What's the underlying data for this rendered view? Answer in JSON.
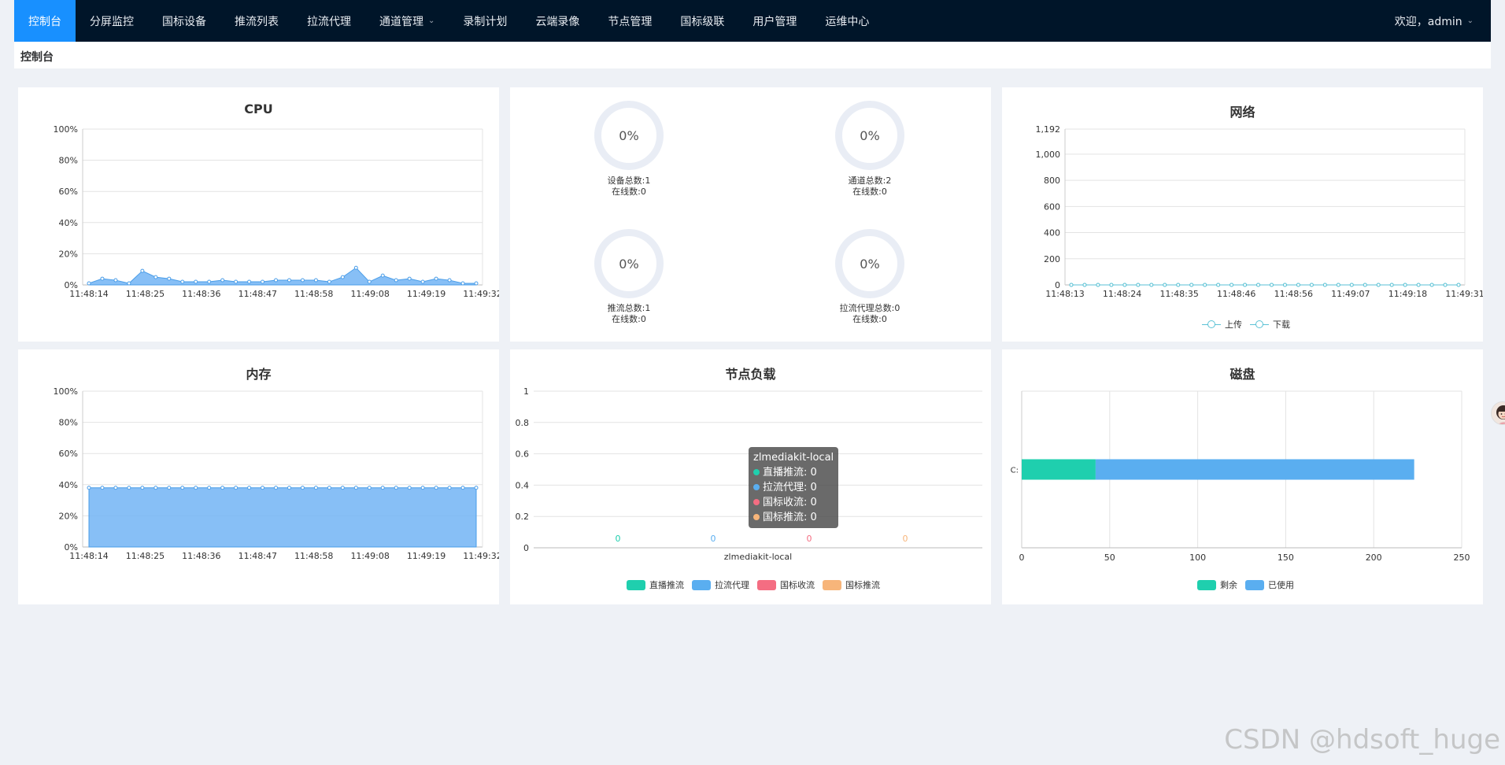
{
  "nav": {
    "items": [
      "控制台",
      "分屏监控",
      "国标设备",
      "推流列表",
      "拉流代理",
      "通道管理",
      "录制计划",
      "云端录像",
      "节点管理",
      "国标级联",
      "用户管理",
      "运维中心"
    ],
    "active_index": 0,
    "user": "欢迎，admin"
  },
  "breadcrumb": "控制台",
  "colors": {
    "nav_bg": "#001529",
    "accent": "#1890ff",
    "area_blue": "#72b4f5",
    "green": "#1fcfae",
    "blue": "#5aaef0",
    "red": "#f46d82",
    "orange": "#f7b57a"
  },
  "gauges": [
    {
      "value": "0%",
      "line1": "设备总数:1",
      "line2": "在线数:0"
    },
    {
      "value": "0%",
      "line1": "通道总数:2",
      "line2": "在线数:0"
    },
    {
      "value": "0%",
      "line1": "推流总数:1",
      "line2": "在线数:0"
    },
    {
      "value": "0%",
      "line1": "拉流代理总数:0",
      "line2": "在线数:0"
    }
  ],
  "tooltip": {
    "title": "zlmediakit-local",
    "rows": [
      "直播推流: 0",
      "拉流代理: 0",
      "国标收流: 0",
      "国标推流: 0"
    ]
  },
  "chart_data": [
    {
      "type": "area",
      "title": "CPU",
      "yticks": [
        "0%",
        "20%",
        "40%",
        "60%",
        "80%",
        "100%"
      ],
      "ylim": [
        0,
        100
      ],
      "xticks": [
        "11:48:14",
        "11:48:25",
        "11:48:36",
        "11:48:47",
        "11:48:58",
        "11:49:08",
        "11:49:19",
        "11:49:32"
      ],
      "values": [
        1,
        4,
        3,
        1,
        9,
        5,
        4,
        2,
        2,
        2,
        3,
        2,
        2,
        2,
        3,
        3,
        3,
        3,
        2,
        5,
        11,
        2,
        6,
        3,
        4,
        2,
        4,
        3,
        1,
        1
      ]
    },
    {
      "type": "line",
      "title": "网络",
      "yticks": [
        "0",
        "200",
        "400",
        "600",
        "800",
        "1,000",
        "1,192"
      ],
      "ytick_values": [
        0,
        200,
        400,
        600,
        800,
        1000,
        1192
      ],
      "ylim": [
        0,
        1192
      ],
      "xticks": [
        "11:48:13",
        "11:48:24",
        "11:48:35",
        "11:48:46",
        "11:48:56",
        "11:49:07",
        "11:49:18",
        "11:49:31"
      ],
      "series": [
        {
          "name": "上传",
          "values": [
            0,
            0,
            0,
            0,
            0,
            0,
            0,
            0,
            0,
            0,
            0,
            0,
            0,
            0,
            0,
            0,
            0,
            0,
            0,
            0,
            0,
            0,
            0,
            0,
            0,
            0,
            0,
            0,
            0,
            0
          ]
        },
        {
          "name": "下载",
          "values": [
            0,
            0,
            0,
            0,
            0,
            0,
            0,
            0,
            0,
            0,
            0,
            0,
            0,
            0,
            0,
            0,
            0,
            0,
            0,
            0,
            0,
            0,
            0,
            0,
            0,
            0,
            0,
            0,
            0,
            0
          ]
        }
      ]
    },
    {
      "type": "area",
      "title": "内存",
      "yticks": [
        "0%",
        "20%",
        "40%",
        "60%",
        "80%",
        "100%"
      ],
      "ylim": [
        0,
        100
      ],
      "xticks": [
        "11:48:14",
        "11:48:25",
        "11:48:36",
        "11:48:47",
        "11:48:58",
        "11:49:08",
        "11:49:19",
        "11:49:32"
      ],
      "values": [
        38,
        38,
        38,
        38,
        38,
        38,
        38,
        38,
        38,
        38,
        38,
        38,
        38,
        38,
        38,
        38,
        38,
        38,
        38,
        38,
        38,
        38,
        38,
        38,
        38,
        38,
        38,
        38,
        38,
        38
      ]
    },
    {
      "type": "bar",
      "title": "节点负载",
      "categories": [
        "zlmediakit-local"
      ],
      "yticks": [
        "0",
        "0.2",
        "0.4",
        "0.6",
        "0.8",
        "1"
      ],
      "ylim": [
        0,
        1
      ],
      "series": [
        {
          "name": "直播推流",
          "values": [
            0
          ]
        },
        {
          "name": "拉流代理",
          "values": [
            0
          ]
        },
        {
          "name": "国标收流",
          "values": [
            0
          ]
        },
        {
          "name": "国标推流",
          "values": [
            0
          ]
        }
      ]
    },
    {
      "type": "bar",
      "title": "磁盘",
      "orientation": "horizontal",
      "stacked": true,
      "categories": [
        "C:"
      ],
      "xticks": [
        "0",
        "50",
        "100",
        "150",
        "200",
        "250"
      ],
      "xlim": [
        0,
        250
      ],
      "series": [
        {
          "name": "剩余",
          "values": [
            42
          ]
        },
        {
          "name": "已使用",
          "values": [
            181
          ]
        }
      ]
    }
  ],
  "watermark": "CSDN @hdsoft_huge"
}
